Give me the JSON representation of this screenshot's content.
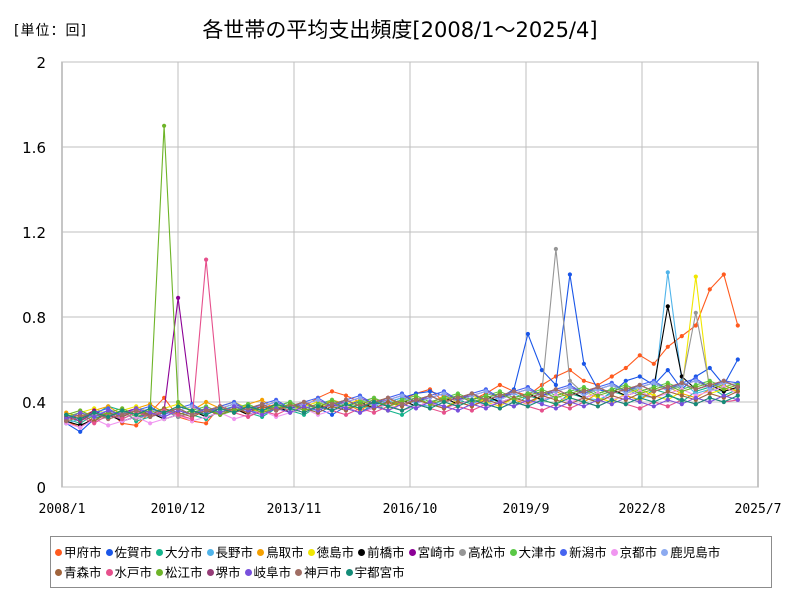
{
  "chart_data": {
    "type": "line",
    "title": "各世帯の平均支出頻度[2008/1～2025/4]",
    "unit_label": "[単位：回]",
    "ylim": [
      0,
      2
    ],
    "y_ticks": [
      "0",
      "0.4",
      "0.8",
      "1.2",
      "1.6",
      "2"
    ],
    "x_range": [
      "2008/1",
      "2025/7"
    ],
    "x_ticks": [
      "2008/1",
      "2010/12",
      "2013/11",
      "2016/10",
      "2019/9",
      "2022/8",
      "2025/7"
    ],
    "grid": "horizontal and vertical",
    "legend_position": "bottom",
    "series": [
      {
        "name": "甲府市",
        "color": "#ff5a1e",
        "values": [
          0.31,
          0.28,
          0.33,
          0.36,
          0.3,
          0.29,
          0.35,
          0.42,
          0.33,
          0.31,
          0.3,
          0.38,
          0.36,
          0.35,
          0.37,
          0.39,
          0.36,
          0.38,
          0.42,
          0.45,
          0.43,
          0.4,
          0.42,
          0.38,
          0.41,
          0.44,
          0.46,
          0.4,
          0.43,
          0.41,
          0.44,
          0.48,
          0.45,
          0.43,
          0.48,
          0.52,
          0.55,
          0.5,
          0.48,
          0.52,
          0.56,
          0.62,
          0.58,
          0.66,
          0.71,
          0.76,
          0.93,
          1.0,
          0.76
        ]
      },
      {
        "name": "佐賀市",
        "color": "#1a56e8",
        "values": [
          0.3,
          0.26,
          0.32,
          0.35,
          0.31,
          0.33,
          0.34,
          0.36,
          0.33,
          0.35,
          0.37,
          0.34,
          0.36,
          0.38,
          0.35,
          0.37,
          0.36,
          0.39,
          0.37,
          0.34,
          0.38,
          0.41,
          0.39,
          0.4,
          0.42,
          0.44,
          0.45,
          0.43,
          0.41,
          0.44,
          0.4,
          0.42,
          0.46,
          0.72,
          0.55,
          0.48,
          1.0,
          0.58,
          0.46,
          0.44,
          0.5,
          0.52,
          0.48,
          0.55,
          0.46,
          0.52,
          0.56,
          0.48,
          0.6
        ]
      },
      {
        "name": "大分市",
        "color": "#14b48c",
        "values": [
          0.32,
          0.3,
          0.34,
          0.38,
          0.36,
          0.31,
          0.33,
          0.35,
          0.37,
          0.34,
          0.32,
          0.36,
          0.38,
          0.35,
          0.33,
          0.37,
          0.36,
          0.34,
          0.38,
          0.4,
          0.37,
          0.35,
          0.39,
          0.36,
          0.34,
          0.38,
          0.4,
          0.37,
          0.41,
          0.39,
          0.42,
          0.4,
          0.38,
          0.43,
          0.41,
          0.39,
          0.44,
          0.42,
          0.4,
          0.45,
          0.43,
          0.41,
          0.46,
          0.44,
          0.4,
          0.45,
          0.47,
          0.43,
          0.46
        ]
      },
      {
        "name": "長野市",
        "color": "#50b4ea",
        "values": [
          0.3,
          0.32,
          0.35,
          0.33,
          0.36,
          0.34,
          0.37,
          0.35,
          0.38,
          0.36,
          0.34,
          0.37,
          0.39,
          0.36,
          0.35,
          0.38,
          0.4,
          0.37,
          0.36,
          0.39,
          0.41,
          0.38,
          0.37,
          0.4,
          0.42,
          0.39,
          0.38,
          0.41,
          0.43,
          0.4,
          0.39,
          0.42,
          0.44,
          0.41,
          0.4,
          0.43,
          0.45,
          0.42,
          0.41,
          0.44,
          0.46,
          0.43,
          0.42,
          1.01,
          0.5,
          0.44,
          0.46,
          0.45,
          0.47
        ]
      },
      {
        "name": "鳥取市",
        "color": "#f5a000",
        "values": [
          0.35,
          0.33,
          0.36,
          0.38,
          0.34,
          0.37,
          0.39,
          0.35,
          0.38,
          0.36,
          0.4,
          0.37,
          0.35,
          0.39,
          0.41,
          0.36,
          0.38,
          0.4,
          0.37,
          0.41,
          0.39,
          0.36,
          0.4,
          0.42,
          0.38,
          0.41,
          0.39,
          0.43,
          0.4,
          0.38,
          0.42,
          0.44,
          0.41,
          0.39,
          0.43,
          0.45,
          0.42,
          0.4,
          0.44,
          0.46,
          0.43,
          0.41,
          0.45,
          0.47,
          0.44,
          0.42,
          0.46,
          0.48,
          0.45
        ]
      },
      {
        "name": "徳島市",
        "color": "#f0e600",
        "values": [
          0.33,
          0.35,
          0.37,
          0.34,
          0.36,
          0.38,
          0.35,
          0.37,
          0.39,
          0.36,
          0.34,
          0.38,
          0.4,
          0.37,
          0.35,
          0.39,
          0.36,
          0.38,
          0.4,
          0.37,
          0.39,
          0.41,
          0.38,
          0.36,
          0.4,
          0.42,
          0.39,
          0.37,
          0.41,
          0.43,
          0.4,
          0.38,
          0.42,
          0.44,
          0.41,
          0.39,
          0.43,
          0.45,
          0.42,
          0.4,
          0.44,
          0.46,
          0.43,
          0.41,
          0.45,
          0.99,
          0.44,
          0.46,
          0.45
        ]
      },
      {
        "name": "前橋市",
        "color": "#000000",
        "values": [
          0.31,
          0.29,
          0.32,
          0.34,
          0.31,
          0.33,
          0.35,
          0.32,
          0.34,
          0.36,
          0.33,
          0.35,
          0.37,
          0.34,
          0.36,
          0.38,
          0.35,
          0.37,
          0.39,
          0.36,
          0.38,
          0.4,
          0.37,
          0.39,
          0.41,
          0.38,
          0.4,
          0.42,
          0.39,
          0.41,
          0.43,
          0.4,
          0.42,
          0.44,
          0.41,
          0.43,
          0.45,
          0.42,
          0.44,
          0.46,
          0.43,
          0.45,
          0.47,
          0.85,
          0.52,
          0.46,
          0.48,
          0.45,
          0.47
        ]
      },
      {
        "name": "宮崎市",
        "color": "#8c0096",
        "values": [
          0.34,
          0.32,
          0.36,
          0.33,
          0.35,
          0.37,
          0.34,
          0.36,
          0.89,
          0.38,
          0.35,
          0.37,
          0.39,
          0.36,
          0.38,
          0.4,
          0.37,
          0.39,
          0.41,
          0.38,
          0.4,
          0.42,
          0.39,
          0.41,
          0.43,
          0.4,
          0.42,
          0.44,
          0.41,
          0.43,
          0.45,
          0.42,
          0.44,
          0.46,
          0.43,
          0.45,
          0.47,
          0.44,
          0.46,
          0.48,
          0.45,
          0.47,
          0.49,
          0.46,
          0.48,
          0.5,
          0.47,
          0.49,
          0.48
        ]
      },
      {
        "name": "高松市",
        "color": "#969696",
        "values": [
          0.32,
          0.34,
          0.31,
          0.33,
          0.35,
          0.32,
          0.34,
          0.36,
          0.33,
          0.35,
          0.37,
          0.34,
          0.36,
          0.38,
          0.35,
          0.37,
          0.39,
          0.36,
          0.38,
          0.4,
          0.37,
          0.39,
          0.41,
          0.38,
          0.4,
          0.42,
          0.39,
          0.41,
          0.43,
          0.4,
          0.42,
          0.44,
          0.41,
          0.43,
          0.45,
          1.12,
          0.5,
          0.44,
          0.46,
          0.48,
          0.45,
          0.47,
          0.49,
          0.46,
          0.48,
          0.82,
          0.47,
          0.49,
          0.48
        ]
      },
      {
        "name": "大津市",
        "color": "#5ac846",
        "values": [
          0.33,
          0.35,
          0.32,
          0.34,
          0.36,
          0.33,
          0.35,
          0.37,
          0.34,
          0.36,
          0.38,
          0.35,
          0.37,
          0.39,
          0.36,
          0.38,
          0.4,
          0.37,
          0.39,
          0.41,
          0.38,
          0.4,
          0.42,
          0.39,
          0.41,
          0.43,
          0.4,
          0.42,
          0.44,
          0.41,
          0.43,
          0.45,
          0.42,
          0.44,
          0.46,
          0.43,
          0.45,
          0.47,
          0.44,
          0.46,
          0.48,
          0.45,
          0.47,
          0.49,
          0.46,
          0.48,
          0.5,
          0.47,
          0.49
        ]
      },
      {
        "name": "新潟市",
        "color": "#4664f0",
        "values": [
          0.34,
          0.31,
          0.35,
          0.37,
          0.33,
          0.36,
          0.38,
          0.34,
          0.37,
          0.39,
          0.35,
          0.38,
          0.4,
          0.36,
          0.39,
          0.41,
          0.37,
          0.4,
          0.42,
          0.38,
          0.41,
          0.43,
          0.39,
          0.42,
          0.44,
          0.4,
          0.43,
          0.45,
          0.41,
          0.44,
          0.46,
          0.42,
          0.45,
          0.47,
          0.43,
          0.46,
          0.48,
          0.44,
          0.47,
          0.49,
          0.45,
          0.48,
          0.5,
          0.46,
          0.49,
          0.51,
          0.47,
          0.5,
          0.49
        ]
      },
      {
        "name": "京都市",
        "color": "#f096f0",
        "values": [
          0.3,
          0.28,
          0.32,
          0.29,
          0.31,
          0.33,
          0.3,
          0.32,
          0.34,
          0.31,
          0.33,
          0.35,
          0.32,
          0.34,
          0.36,
          0.33,
          0.35,
          0.37,
          0.34,
          0.36,
          0.38,
          0.35,
          0.37,
          0.39,
          0.36,
          0.38,
          0.4,
          0.37,
          0.39,
          0.41,
          0.38,
          0.4,
          0.42,
          0.39,
          0.41,
          0.43,
          0.4,
          0.42,
          0.44,
          0.41,
          0.43,
          0.45,
          0.42,
          0.44,
          0.46,
          0.43,
          0.45,
          0.47,
          0.44
        ]
      },
      {
        "name": "鹿児島市",
        "color": "#8caaf0",
        "values": [
          0.33,
          0.31,
          0.34,
          0.36,
          0.32,
          0.35,
          0.37,
          0.33,
          0.36,
          0.38,
          0.34,
          0.37,
          0.39,
          0.35,
          0.38,
          0.4,
          0.36,
          0.39,
          0.41,
          0.37,
          0.4,
          0.42,
          0.38,
          0.41,
          0.43,
          0.39,
          0.42,
          0.44,
          0.4,
          0.43,
          0.45,
          0.41,
          0.44,
          0.46,
          0.42,
          0.45,
          0.47,
          0.43,
          0.46,
          0.48,
          0.44,
          0.47,
          0.49,
          0.45,
          0.48,
          0.5,
          0.46,
          0.49,
          0.48
        ]
      },
      {
        "name": "青森市",
        "color": "#a0643c",
        "values": [
          0.32,
          0.34,
          0.31,
          0.35,
          0.33,
          0.36,
          0.34,
          0.37,
          0.35,
          0.33,
          0.36,
          0.34,
          0.37,
          0.35,
          0.38,
          0.36,
          0.39,
          0.37,
          0.35,
          0.38,
          0.36,
          0.39,
          0.37,
          0.4,
          0.38,
          0.41,
          0.39,
          0.37,
          0.4,
          0.38,
          0.41,
          0.39,
          0.42,
          0.4,
          0.43,
          0.41,
          0.39,
          0.42,
          0.4,
          0.43,
          0.41,
          0.44,
          0.42,
          0.45,
          0.43,
          0.41,
          0.44,
          0.42,
          0.45
        ]
      },
      {
        "name": "水戸市",
        "color": "#e6508c",
        "values": [
          0.31,
          0.33,
          0.3,
          0.34,
          0.32,
          0.35,
          0.33,
          0.36,
          0.34,
          0.32,
          1.07,
          0.38,
          0.35,
          0.33,
          0.36,
          0.34,
          0.37,
          0.35,
          0.38,
          0.36,
          0.34,
          0.37,
          0.35,
          0.38,
          0.36,
          0.39,
          0.37,
          0.35,
          0.38,
          0.36,
          0.39,
          0.37,
          0.4,
          0.38,
          0.36,
          0.39,
          0.37,
          0.4,
          0.38,
          0.41,
          0.39,
          0.37,
          0.4,
          0.38,
          0.41,
          0.39,
          0.42,
          0.4,
          0.41
        ]
      },
      {
        "name": "松江市",
        "color": "#6eb428",
        "values": [
          0.34,
          0.36,
          0.33,
          0.35,
          0.37,
          0.34,
          0.36,
          1.7,
          0.4,
          0.35,
          0.37,
          0.34,
          0.36,
          0.38,
          0.35,
          0.37,
          0.39,
          0.36,
          0.38,
          0.4,
          0.37,
          0.39,
          0.41,
          0.38,
          0.4,
          0.42,
          0.39,
          0.41,
          0.43,
          0.4,
          0.42,
          0.44,
          0.41,
          0.43,
          0.45,
          0.42,
          0.44,
          0.46,
          0.43,
          0.45,
          0.47,
          0.44,
          0.46,
          0.48,
          0.45,
          0.47,
          0.49,
          0.46,
          0.48
        ]
      },
      {
        "name": "堺市",
        "color": "#963c78",
        "values": [
          0.33,
          0.31,
          0.35,
          0.32,
          0.34,
          0.36,
          0.33,
          0.35,
          0.37,
          0.34,
          0.36,
          0.38,
          0.35,
          0.37,
          0.39,
          0.36,
          0.38,
          0.4,
          0.37,
          0.39,
          0.41,
          0.38,
          0.4,
          0.42,
          0.39,
          0.41,
          0.43,
          0.4,
          0.42,
          0.44,
          0.41,
          0.43,
          0.45,
          0.42,
          0.44,
          0.46,
          0.43,
          0.45,
          0.47,
          0.44,
          0.46,
          0.48,
          0.45,
          0.47,
          0.49,
          0.46,
          0.48,
          0.5,
          0.47
        ]
      },
      {
        "name": "岐阜市",
        "color": "#7850dc",
        "values": [
          0.32,
          0.35,
          0.33,
          0.36,
          0.34,
          0.37,
          0.35,
          0.33,
          0.36,
          0.34,
          0.37,
          0.35,
          0.38,
          0.36,
          0.34,
          0.37,
          0.35,
          0.38,
          0.36,
          0.39,
          0.37,
          0.35,
          0.38,
          0.36,
          0.39,
          0.37,
          0.4,
          0.38,
          0.36,
          0.39,
          0.37,
          0.4,
          0.38,
          0.41,
          0.39,
          0.37,
          0.4,
          0.38,
          0.41,
          0.39,
          0.42,
          0.4,
          0.38,
          0.41,
          0.39,
          0.42,
          0.4,
          0.43,
          0.41
        ]
      },
      {
        "name": "神戸市",
        "color": "#a06e64",
        "values": [
          0.31,
          0.33,
          0.35,
          0.32,
          0.34,
          0.36,
          0.33,
          0.35,
          0.37,
          0.34,
          0.36,
          0.38,
          0.35,
          0.37,
          0.39,
          0.36,
          0.38,
          0.4,
          0.37,
          0.39,
          0.41,
          0.38,
          0.4,
          0.42,
          0.39,
          0.41,
          0.43,
          0.4,
          0.42,
          0.44,
          0.41,
          0.43,
          0.45,
          0.42,
          0.44,
          0.46,
          0.43,
          0.45,
          0.47,
          0.44,
          0.46,
          0.48,
          0.45,
          0.47,
          0.49,
          0.46,
          0.48,
          0.5,
          0.47
        ]
      },
      {
        "name": "宇都宮市",
        "color": "#148c78",
        "values": [
          0.34,
          0.32,
          0.35,
          0.33,
          0.36,
          0.34,
          0.37,
          0.35,
          0.38,
          0.36,
          0.34,
          0.37,
          0.35,
          0.38,
          0.36,
          0.39,
          0.37,
          0.35,
          0.38,
          0.36,
          0.39,
          0.37,
          0.4,
          0.38,
          0.36,
          0.39,
          0.37,
          0.4,
          0.38,
          0.41,
          0.39,
          0.37,
          0.4,
          0.38,
          0.41,
          0.39,
          0.42,
          0.4,
          0.38,
          0.41,
          0.39,
          0.42,
          0.4,
          0.43,
          0.41,
          0.39,
          0.42,
          0.4,
          0.43
        ]
      }
    ]
  }
}
